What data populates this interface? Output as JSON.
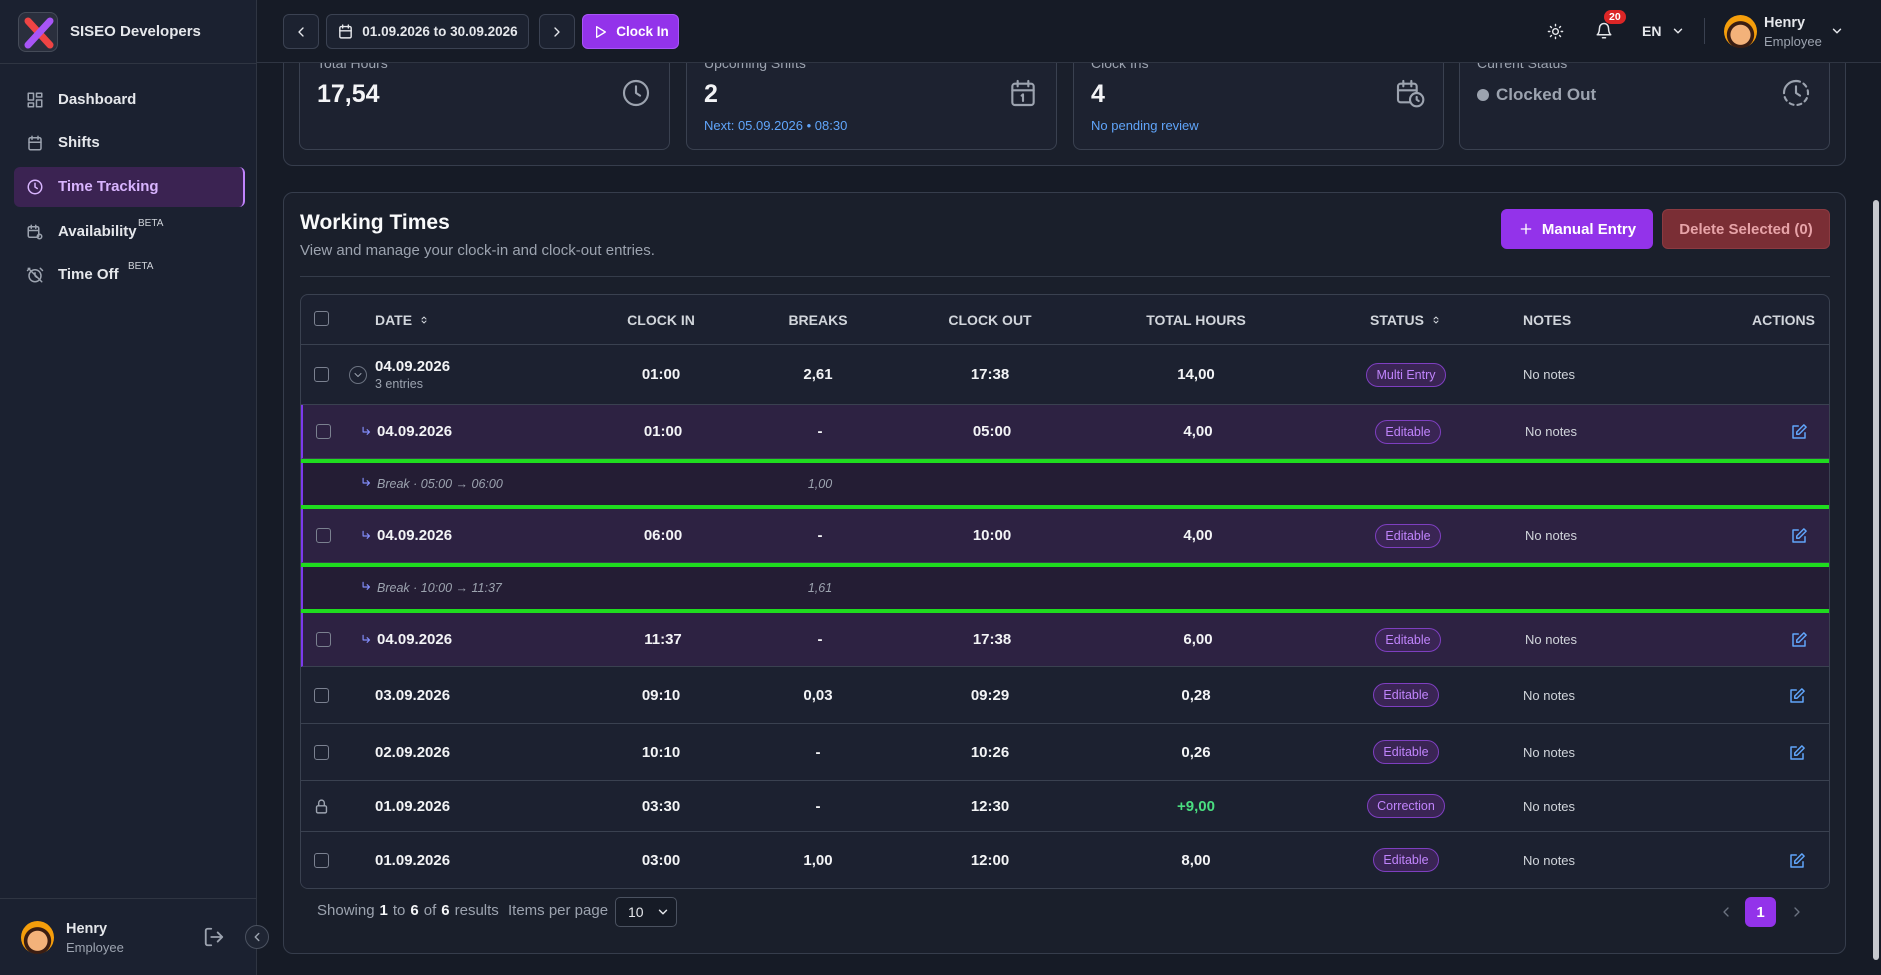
{
  "sidebar": {
    "brand": "SISEO Developers",
    "nav": [
      {
        "label": "Dashboard"
      },
      {
        "label": "Shifts"
      },
      {
        "label": "Time Tracking",
        "active": true
      },
      {
        "label": "Availability",
        "badge": "BETA"
      },
      {
        "label": "Time Off",
        "badge": "BETA"
      }
    ],
    "user": {
      "name": "Henry",
      "role": "Employee"
    }
  },
  "topbar": {
    "date_range": "01.09.2026 to 30.09.2026",
    "clock_in": "Clock In",
    "notifications": "20",
    "language": "EN",
    "user": {
      "name": "Henry",
      "role": "Employee"
    }
  },
  "stats": [
    {
      "label": "Total Hours",
      "value": "17,54"
    },
    {
      "label": "Upcoming Shifts",
      "value": "2",
      "note": "Next: 05.09.2026 • 08:30"
    },
    {
      "label": "Clock Ins",
      "value": "4",
      "note": "No pending review"
    },
    {
      "label": "Current Status",
      "value": "Clocked Out"
    }
  ],
  "working_times": {
    "title": "Working Times",
    "subtitle": "View and manage your clock-in and clock-out entries.",
    "manual_entry": "Manual Entry",
    "delete_selected": "Delete Selected (0)",
    "columns": {
      "date": "DATE",
      "clock_in": "CLOCK IN",
      "breaks": "BREAKS",
      "clock_out": "CLOCK OUT",
      "total": "TOTAL HOURS",
      "status": "STATUS",
      "notes": "NOTES",
      "actions": "ACTIONS"
    },
    "rows": [
      {
        "kind": "group",
        "date": "04.09.2026",
        "sub": "3 entries",
        "clock_in": "01:00",
        "breaks": "2,61",
        "clock_out": "17:38",
        "total": "14,00",
        "status": "Multi Entry",
        "notes": "No notes"
      },
      {
        "kind": "entry",
        "date": "04.09.2026",
        "clock_in": "01:00",
        "breaks": "-",
        "clock_out": "05:00",
        "total": "4,00",
        "status": "Editable",
        "notes": "No notes"
      },
      {
        "kind": "break",
        "label": "Break · 05:00 → 06:00",
        "duration": "1,00"
      },
      {
        "kind": "entry",
        "date": "04.09.2026",
        "clock_in": "06:00",
        "breaks": "-",
        "clock_out": "10:00",
        "total": "4,00",
        "status": "Editable",
        "notes": "No notes"
      },
      {
        "kind": "break",
        "label": "Break · 10:00 → 11:37",
        "duration": "1,61"
      },
      {
        "kind": "entry",
        "date": "04.09.2026",
        "clock_in": "11:37",
        "breaks": "-",
        "clock_out": "17:38",
        "total": "6,00",
        "status": "Editable",
        "notes": "No notes"
      },
      {
        "kind": "plain",
        "date": "03.09.2026",
        "clock_in": "09:10",
        "breaks": "0,03",
        "clock_out": "09:29",
        "total": "0,28",
        "status": "Editable",
        "notes": "No notes"
      },
      {
        "kind": "plain",
        "date": "02.09.2026",
        "clock_in": "10:10",
        "breaks": "-",
        "clock_out": "10:26",
        "total": "0,26",
        "status": "Editable",
        "notes": "No notes"
      },
      {
        "kind": "locked",
        "date": "01.09.2026",
        "clock_in": "03:30",
        "breaks": "-",
        "clock_out": "12:30",
        "total": "+9,00",
        "status": "Correction",
        "notes": "No notes"
      },
      {
        "kind": "plain",
        "date": "01.09.2026",
        "clock_in": "03:00",
        "breaks": "1,00",
        "clock_out": "12:00",
        "total": "8,00",
        "status": "Editable",
        "notes": "No notes"
      }
    ],
    "footer": {
      "showing": [
        "Showing",
        "1",
        "to",
        "6",
        "of",
        "6",
        "results"
      ],
      "per_page_label": "Items per page",
      "per_page": "10",
      "page": "1"
    }
  }
}
